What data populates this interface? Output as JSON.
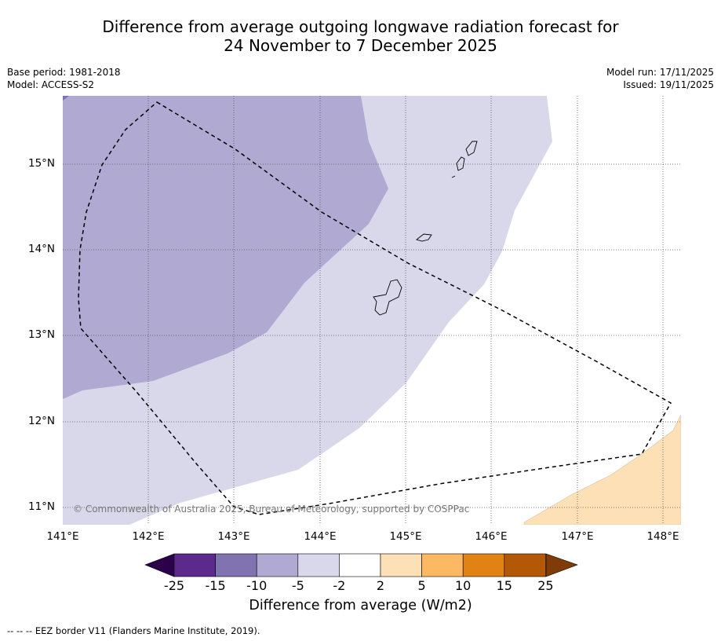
{
  "title": {
    "line1": "Difference from average outgoing longwave radiation forecast for",
    "line2": "24 November to 7 December 2025"
  },
  "meta": {
    "base_period": "Base period: 1981-2018",
    "model": "Model: ACCESS-S2",
    "model_run": "Model run: 17/11/2025",
    "issued": "Issued: 19/11/2025"
  },
  "map": {
    "lat_labels": [
      "15°N",
      "14°N",
      "13°N",
      "12°N",
      "11°N"
    ],
    "lon_labels": [
      "141°E",
      "142°E",
      "143°E",
      "144°E",
      "145°E",
      "146°E",
      "147°E",
      "148°E"
    ],
    "copyright": "© Commonwealth of Australia 2025, Bureau of Meteorology, supported by COSPPac",
    "colors": {
      "band_minus10_minus5": "#b0a9d1",
      "band_minus5_minus2": "#d8d8ea",
      "band_2_5": "#fde0b6",
      "coastline": "#000000",
      "grid": "#555555"
    }
  },
  "colorbar": {
    "title": "Difference from average (W/m2)",
    "labels": [
      "-25",
      "-15",
      "-10",
      "-5",
      "-2",
      "2",
      "5",
      "10",
      "15",
      "25"
    ],
    "low_extend_color": "#2d004b",
    "high_extend_color": "#7f3b08",
    "colors": [
      "#5b2a8c",
      "#8173b0",
      "#b0a9d1",
      "#d8d8ea",
      "#ffffff",
      "#fde0b6",
      "#fdb863",
      "#e08214",
      "#b35806"
    ]
  },
  "footnote": "--  --  -- EEZ border V11 (Flanders Marine Institute, 2019)."
}
